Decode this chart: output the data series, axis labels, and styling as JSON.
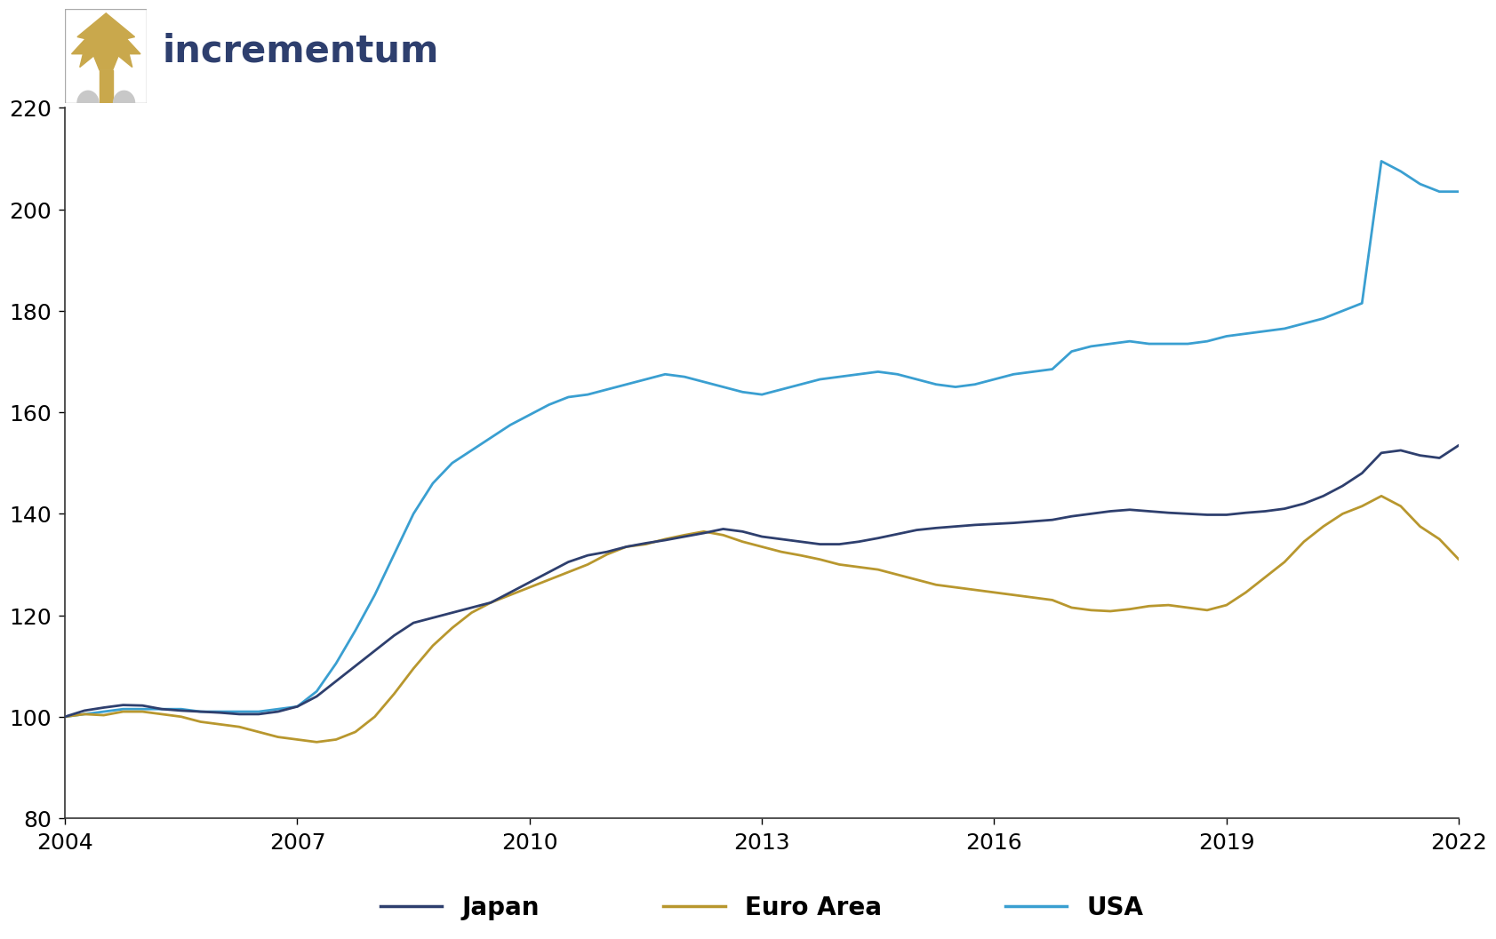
{
  "logo_text": "incrementum",
  "colors": {
    "japan": "#2e3f6e",
    "euro_area": "#b8972e",
    "usa": "#3a9fd1",
    "background": "#ffffff",
    "logo_text": "#2e3f6e",
    "logo_tree": "#c9a84c",
    "logo_base": "#c8c8c8"
  },
  "ylim": [
    80,
    220
  ],
  "yticks": [
    80,
    100,
    120,
    140,
    160,
    180,
    200,
    220
  ],
  "xticks": [
    2004,
    2007,
    2010,
    2013,
    2016,
    2019,
    2022
  ],
  "legend_labels": [
    "Japan",
    "Euro Area",
    "USA"
  ],
  "japan": [
    100.0,
    101.2,
    101.8,
    102.3,
    102.2,
    101.5,
    101.2,
    101.0,
    100.8,
    100.5,
    100.5,
    101.0,
    102.0,
    104.0,
    107.0,
    110.0,
    113.0,
    116.0,
    118.5,
    119.5,
    120.5,
    121.5,
    122.5,
    124.5,
    126.5,
    128.5,
    130.5,
    131.8,
    132.5,
    133.5,
    134.2,
    134.8,
    135.5,
    136.2,
    137.0,
    136.5,
    135.5,
    135.0,
    134.5,
    134.0,
    134.0,
    134.5,
    135.2,
    136.0,
    136.8,
    137.2,
    137.5,
    137.8,
    138.0,
    138.2,
    138.5,
    138.8,
    139.5,
    140.0,
    140.5,
    140.8,
    140.5,
    140.2,
    140.0,
    139.8,
    139.8,
    140.2,
    140.5,
    141.0,
    142.0,
    143.5,
    145.5,
    148.0,
    152.0,
    152.5,
    151.5,
    151.0,
    153.5
  ],
  "euro_area": [
    100.0,
    100.5,
    100.3,
    101.0,
    101.0,
    100.5,
    100.0,
    99.0,
    98.5,
    98.0,
    97.0,
    96.0,
    95.5,
    95.0,
    95.5,
    97.0,
    100.0,
    104.5,
    109.5,
    114.0,
    117.5,
    120.5,
    122.5,
    124.0,
    125.5,
    127.0,
    128.5,
    130.0,
    132.0,
    133.5,
    134.0,
    135.0,
    135.8,
    136.5,
    135.8,
    134.5,
    133.5,
    132.5,
    131.8,
    131.0,
    130.0,
    129.5,
    129.0,
    128.0,
    127.0,
    126.0,
    125.5,
    125.0,
    124.5,
    124.0,
    123.5,
    123.0,
    121.5,
    121.0,
    120.8,
    121.2,
    121.8,
    122.0,
    121.5,
    121.0,
    122.0,
    124.5,
    127.5,
    130.5,
    134.5,
    137.5,
    140.0,
    141.5,
    143.5,
    141.5,
    137.5,
    135.0,
    131.0
  ],
  "usa": [
    100.0,
    100.5,
    101.0,
    101.5,
    101.5,
    101.5,
    101.5,
    101.0,
    101.0,
    101.0,
    101.0,
    101.5,
    102.0,
    105.0,
    110.5,
    117.0,
    124.0,
    132.0,
    140.0,
    146.0,
    150.0,
    152.5,
    155.0,
    157.5,
    159.5,
    161.5,
    163.0,
    163.5,
    164.5,
    165.5,
    166.5,
    167.5,
    167.0,
    166.0,
    165.0,
    164.0,
    163.5,
    164.5,
    165.5,
    166.5,
    167.0,
    167.5,
    168.0,
    167.5,
    166.5,
    165.5,
    165.0,
    165.5,
    166.5,
    167.5,
    168.0,
    168.5,
    172.0,
    173.0,
    173.5,
    174.0,
    173.5,
    173.5,
    173.5,
    174.0,
    175.0,
    175.5,
    176.0,
    176.5,
    177.5,
    178.5,
    180.0,
    181.5,
    209.5,
    207.5,
    205.0,
    203.5,
    203.5
  ]
}
